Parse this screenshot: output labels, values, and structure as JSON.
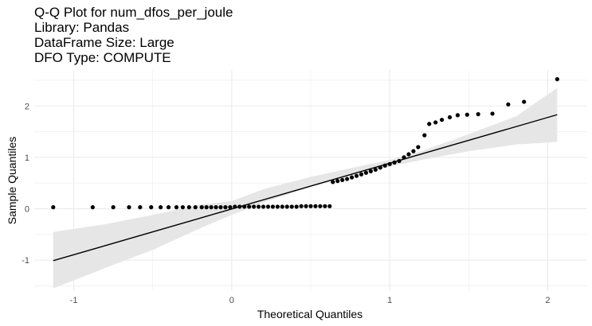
{
  "title_lines": [
    "Q-Q Plot for num_dfos_per_joule",
    "Library: Pandas",
    "DataFrame Size: Large",
    "DFO Type: COMPUTE"
  ],
  "chart_data": {
    "type": "scatter",
    "xlabel": "Theoretical Quantiles",
    "ylabel": "Sample Quantiles",
    "xlim": [
      -1.25,
      2.25
    ],
    "ylim": [
      -1.6,
      2.7
    ],
    "x_ticks": [
      -1,
      0,
      1,
      2
    ],
    "y_ticks": [
      -1,
      0,
      1,
      2
    ],
    "grid": true,
    "legend": "none",
    "points": [
      [
        -1.13,
        0.03
      ],
      [
        -0.88,
        0.03
      ],
      [
        -0.75,
        0.03
      ],
      [
        -0.65,
        0.03
      ],
      [
        -0.58,
        0.03
      ],
      [
        -0.51,
        0.03
      ],
      [
        -0.45,
        0.03
      ],
      [
        -0.4,
        0.03
      ],
      [
        -0.35,
        0.03
      ],
      [
        -0.31,
        0.03
      ],
      [
        -0.27,
        0.03
      ],
      [
        -0.23,
        0.03
      ],
      [
        -0.19,
        0.03
      ],
      [
        -0.16,
        0.03
      ],
      [
        -0.13,
        0.03
      ],
      [
        -0.1,
        0.03
      ],
      [
        -0.07,
        0.03
      ],
      [
        -0.04,
        0.03
      ],
      [
        -0.01,
        0.03
      ],
      [
        0.02,
        0.04
      ],
      [
        0.05,
        0.04
      ],
      [
        0.08,
        0.04
      ],
      [
        0.11,
        0.04
      ],
      [
        0.14,
        0.04
      ],
      [
        0.17,
        0.04
      ],
      [
        0.2,
        0.04
      ],
      [
        0.23,
        0.04
      ],
      [
        0.26,
        0.04
      ],
      [
        0.29,
        0.04
      ],
      [
        0.32,
        0.04
      ],
      [
        0.35,
        0.04
      ],
      [
        0.38,
        0.04
      ],
      [
        0.41,
        0.04
      ],
      [
        0.44,
        0.05
      ],
      [
        0.47,
        0.05
      ],
      [
        0.5,
        0.05
      ],
      [
        0.53,
        0.05
      ],
      [
        0.56,
        0.05
      ],
      [
        0.59,
        0.05
      ],
      [
        0.62,
        0.05
      ],
      [
        0.64,
        0.52
      ],
      [
        0.67,
        0.54
      ],
      [
        0.7,
        0.56
      ],
      [
        0.73,
        0.58
      ],
      [
        0.76,
        0.61
      ],
      [
        0.79,
        0.64
      ],
      [
        0.82,
        0.67
      ],
      [
        0.85,
        0.7
      ],
      [
        0.88,
        0.73
      ],
      [
        0.91,
        0.76
      ],
      [
        0.94,
        0.8
      ],
      [
        0.97,
        0.84
      ],
      [
        1.0,
        0.87
      ],
      [
        1.03,
        0.9
      ],
      [
        1.06,
        0.93
      ],
      [
        1.09,
        1.0
      ],
      [
        1.12,
        1.06
      ],
      [
        1.15,
        1.12
      ],
      [
        1.18,
        1.2
      ],
      [
        1.22,
        1.43
      ],
      [
        1.25,
        1.65
      ],
      [
        1.29,
        1.68
      ],
      [
        1.33,
        1.73
      ],
      [
        1.38,
        1.78
      ],
      [
        1.43,
        1.82
      ],
      [
        1.49,
        1.83
      ],
      [
        1.56,
        1.84
      ],
      [
        1.65,
        1.85
      ],
      [
        1.75,
        2.03
      ],
      [
        1.85,
        2.08
      ],
      [
        2.06,
        2.52
      ]
    ],
    "reference_line": {
      "x": [
        -1.13,
        2.06
      ],
      "y": [
        -1.01,
        1.83
      ]
    },
    "confidence_band": {
      "x": [
        -1.13,
        -0.8,
        -0.5,
        -0.2,
        0.0,
        0.2,
        0.5,
        0.8,
        1.0,
        1.2,
        1.5,
        1.8,
        2.06
      ],
      "lower": [
        -1.55,
        -1.15,
        -0.8,
        -0.38,
        -0.12,
        0.12,
        0.43,
        0.68,
        0.82,
        0.95,
        1.12,
        1.25,
        1.3
      ],
      "upper": [
        -0.45,
        -0.3,
        -0.12,
        0.08,
        0.15,
        0.38,
        0.62,
        0.82,
        0.95,
        1.12,
        1.45,
        1.8,
        2.35
      ]
    },
    "colors": {
      "points": "#000000",
      "line": "#000000",
      "band": "#e6e6e6",
      "grid": "#ebebeb"
    }
  }
}
